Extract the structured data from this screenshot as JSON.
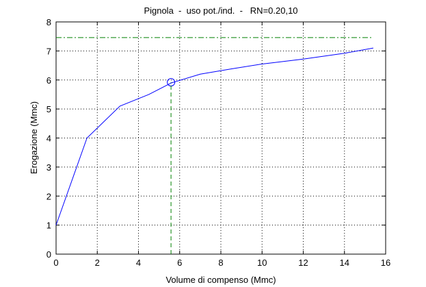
{
  "chart_data": {
    "type": "line",
    "title": "Pignola  -  uso pot./ind.  -   RN=0.20,10",
    "xlabel": "Volume di compenso (Mmc)",
    "ylabel": "Erogazione (Mmc)",
    "xlim": [
      0,
      16
    ],
    "ylim": [
      0,
      8
    ],
    "xticks": [
      0,
      2,
      4,
      6,
      8,
      10,
      12,
      14,
      16
    ],
    "yticks": [
      0,
      1,
      2,
      3,
      4,
      5,
      6,
      7,
      8
    ],
    "grid": true,
    "series": [
      {
        "color": "#0000ff",
        "linestyle": "-",
        "x": [
          0,
          1.5,
          3.1,
          4.5,
          5.6,
          7,
          8.5,
          10,
          12,
          14,
          15.4
        ],
        "values": [
          1,
          4,
          5.1,
          5.5,
          5.9,
          6.2,
          6.38,
          6.55,
          6.72,
          6.92,
          7.1
        ]
      },
      {
        "color": "#0000ff",
        "linestyle": "none",
        "marker": "o",
        "x": [
          5.58
        ],
        "values": [
          5.92
        ]
      },
      {
        "color": "#008000",
        "linestyle": "-.",
        "x": [
          0,
          15.4
        ],
        "values": [
          7.46,
          7.46
        ]
      },
      {
        "color": "#008000",
        "linestyle": "--",
        "x": [
          5.58,
          5.58
        ],
        "values": [
          0,
          5.92
        ]
      }
    ]
  }
}
